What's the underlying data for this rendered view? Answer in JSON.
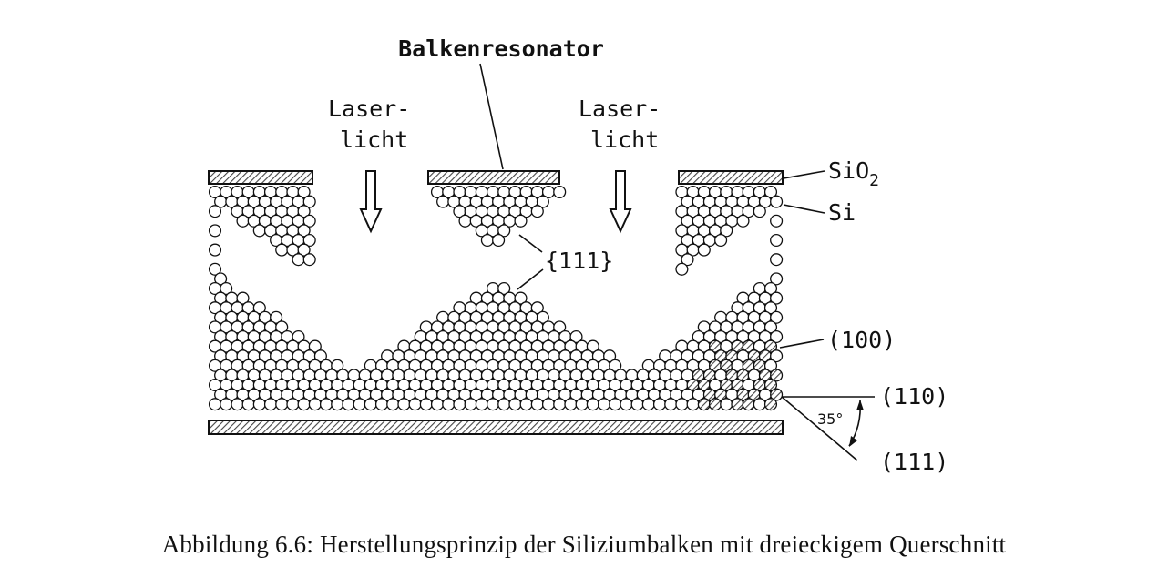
{
  "diagram": {
    "top_label": "Balkenresonator",
    "laser_line1": "Laser-",
    "laser_line2": "licht",
    "sio2_main": "SiO",
    "sio2_sub": "2",
    "si_label": "Si",
    "plane_111_braces": "{111}",
    "plane_100": "(100)",
    "plane_110": "(110)",
    "plane_111": "(111)",
    "angle_label": "35°"
  },
  "caption": "Abbildung 6.6: Herstellungsprinzip der Siliziumbalken mit dreieckigem Querschnitt",
  "colors": {
    "ink": "#111111",
    "hatch": "#555555",
    "background": "#ffffff"
  }
}
